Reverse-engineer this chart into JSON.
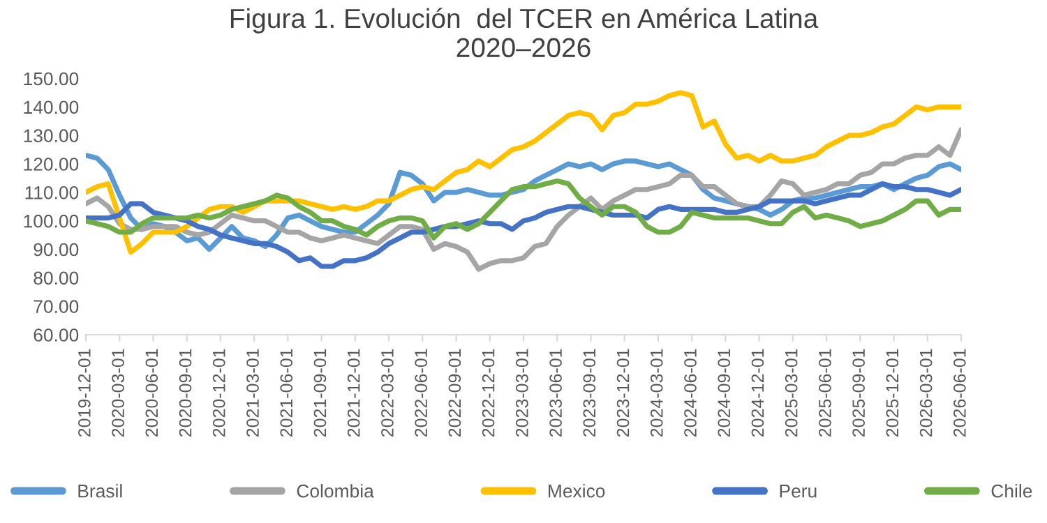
{
  "chart_data": {
    "type": "line",
    "title": "Figura 1. Evolución  del TCER en América Latina\n2020–2026",
    "categories": [
      "2019-12-01",
      null,
      null,
      "2020-03-01",
      null,
      null,
      "2020-06-01",
      null,
      null,
      "2020-09-01",
      null,
      null,
      "2020-12-01",
      null,
      null,
      "2021-03-01",
      null,
      null,
      "2021-06-01",
      null,
      null,
      "2021-09-01",
      null,
      null,
      "2021-12-01",
      null,
      null,
      "2022-03-01",
      null,
      null,
      "2022-06-01",
      null,
      null,
      "2022-09-01",
      null,
      null,
      "2022-12-01",
      null,
      null,
      "2023-03-01",
      null,
      null,
      "2023-06-01",
      null,
      null,
      "2023-09-01",
      null,
      null,
      "2023-12-01",
      null,
      null,
      "2024-03-01",
      null,
      null,
      "2024-06-01",
      null,
      null,
      "2024-09-01",
      null,
      null,
      "2024-12-01",
      null,
      null,
      "2025-03-01",
      null,
      null,
      "2025-06-01",
      null,
      null,
      "2025-09-01",
      null,
      null,
      "2025-12-01",
      null,
      null,
      "2026-03-01",
      null,
      null,
      "2026-06-01"
    ],
    "series": [
      {
        "name": "Brasil",
        "color": "#5b9bd5",
        "values": [
          123,
          122,
          118,
          109,
          101,
          97,
          99,
          98,
          96,
          93,
          94,
          90,
          94,
          98,
          94,
          93,
          91,
          95,
          101,
          102,
          100,
          98,
          97,
          96,
          96,
          99,
          102,
          106,
          117,
          116,
          113,
          107,
          110,
          110,
          111,
          110,
          109,
          109,
          110,
          111,
          114,
          116,
          118,
          120,
          119,
          120,
          118,
          120,
          121,
          121,
          120,
          119,
          120,
          118,
          116,
          111,
          108,
          107,
          106,
          105,
          104,
          102,
          104,
          107,
          108,
          108,
          109,
          110,
          111,
          112,
          112,
          113,
          111,
          113,
          115,
          116,
          119,
          120,
          118
        ]
      },
      {
        "name": "Colombia",
        "color": "#a5a5a5",
        "values": [
          106,
          108,
          105,
          99,
          97,
          97,
          98,
          98,
          98,
          96,
          95,
          96,
          99,
          102,
          101,
          100,
          100,
          98,
          96,
          96,
          94,
          93,
          94,
          95,
          94,
          93,
          92,
          95,
          98,
          98,
          97,
          90,
          92,
          91,
          89,
          83,
          85,
          86,
          86,
          87,
          91,
          92,
          98,
          102,
          105,
          108,
          104,
          107,
          109,
          111,
          111,
          112,
          113,
          116,
          116,
          112,
          112,
          109,
          106,
          105,
          105,
          109,
          114,
          113,
          109,
          110,
          111,
          113,
          113,
          116,
          117,
          120,
          120,
          122,
          123,
          123,
          126,
          123,
          132
        ]
      },
      {
        "name": "Mexico",
        "color": "#ffc000",
        "values": [
          110,
          112,
          113,
          101,
          89,
          92,
          96,
          96,
          96,
          98,
          101,
          104,
          105,
          105,
          103,
          105,
          107,
          107,
          107,
          107,
          106,
          105,
          104,
          105,
          104,
          105,
          107,
          107,
          109,
          111,
          112,
          111,
          114,
          117,
          118,
          121,
          119,
          122,
          125,
          126,
          128,
          131,
          134,
          137,
          138,
          137,
          132,
          137,
          138,
          141,
          141,
          142,
          144,
          145,
          144,
          133,
          135,
          127,
          122,
          123,
          121,
          123,
          121,
          121,
          122,
          123,
          126,
          128,
          130,
          130,
          131,
          133,
          134,
          137,
          140,
          139,
          140,
          140,
          140
        ]
      },
      {
        "name": "Peru",
        "color": "#4472c4",
        "values": [
          101,
          101,
          101,
          102,
          106,
          106,
          103,
          102,
          101,
          100,
          98,
          97,
          95,
          94,
          93,
          92,
          92,
          91,
          89,
          86,
          87,
          84,
          84,
          86,
          86,
          87,
          89,
          92,
          94,
          96,
          96,
          97,
          98,
          98,
          99,
          100,
          99,
          99,
          97,
          100,
          101,
          103,
          104,
          105,
          105,
          104,
          103,
          102,
          102,
          102,
          101,
          104,
          105,
          104,
          104,
          104,
          104,
          103,
          103,
          104,
          105,
          107,
          107,
          107,
          107,
          106,
          107,
          108,
          109,
          109,
          111,
          113,
          112,
          112,
          111,
          111,
          110,
          109,
          111
        ]
      },
      {
        "name": "Chile",
        "color": "#70ad47",
        "values": [
          100,
          99,
          98,
          96,
          96,
          99,
          101,
          101,
          101,
          101,
          102,
          101,
          102,
          104,
          105,
          106,
          107,
          109,
          108,
          105,
          103,
          100,
          100,
          98,
          97,
          95,
          98,
          100,
          101,
          101,
          100,
          94,
          98,
          99,
          97,
          99,
          103,
          107,
          111,
          112,
          112,
          113,
          114,
          113,
          108,
          105,
          102,
          105,
          105,
          103,
          98,
          96,
          96,
          98,
          103,
          102,
          101,
          101,
          101,
          101,
          100,
          99,
          99,
          103,
          105,
          101,
          102,
          101,
          100,
          98,
          99,
          100,
          102,
          104,
          107,
          107,
          102,
          104,
          104
        ]
      }
    ],
    "ylim": [
      60,
      150
    ],
    "yticks": [
      {
        "value": 60,
        "label": "60.00"
      },
      {
        "value": 70,
        "label": "70.00"
      },
      {
        "value": 80,
        "label": "80.00"
      },
      {
        "value": 90,
        "label": "90.00"
      },
      {
        "value": 100,
        "label": "100.00"
      },
      {
        "value": 110,
        "label": "110.00"
      },
      {
        "value": 120,
        "label": "120.00"
      },
      {
        "value": 130,
        "label": "130.00"
      },
      {
        "value": 140,
        "label": "140.00"
      },
      {
        "value": 150,
        "label": "150.00"
      }
    ],
    "legend": "bottom",
    "line_style": "solid"
  }
}
